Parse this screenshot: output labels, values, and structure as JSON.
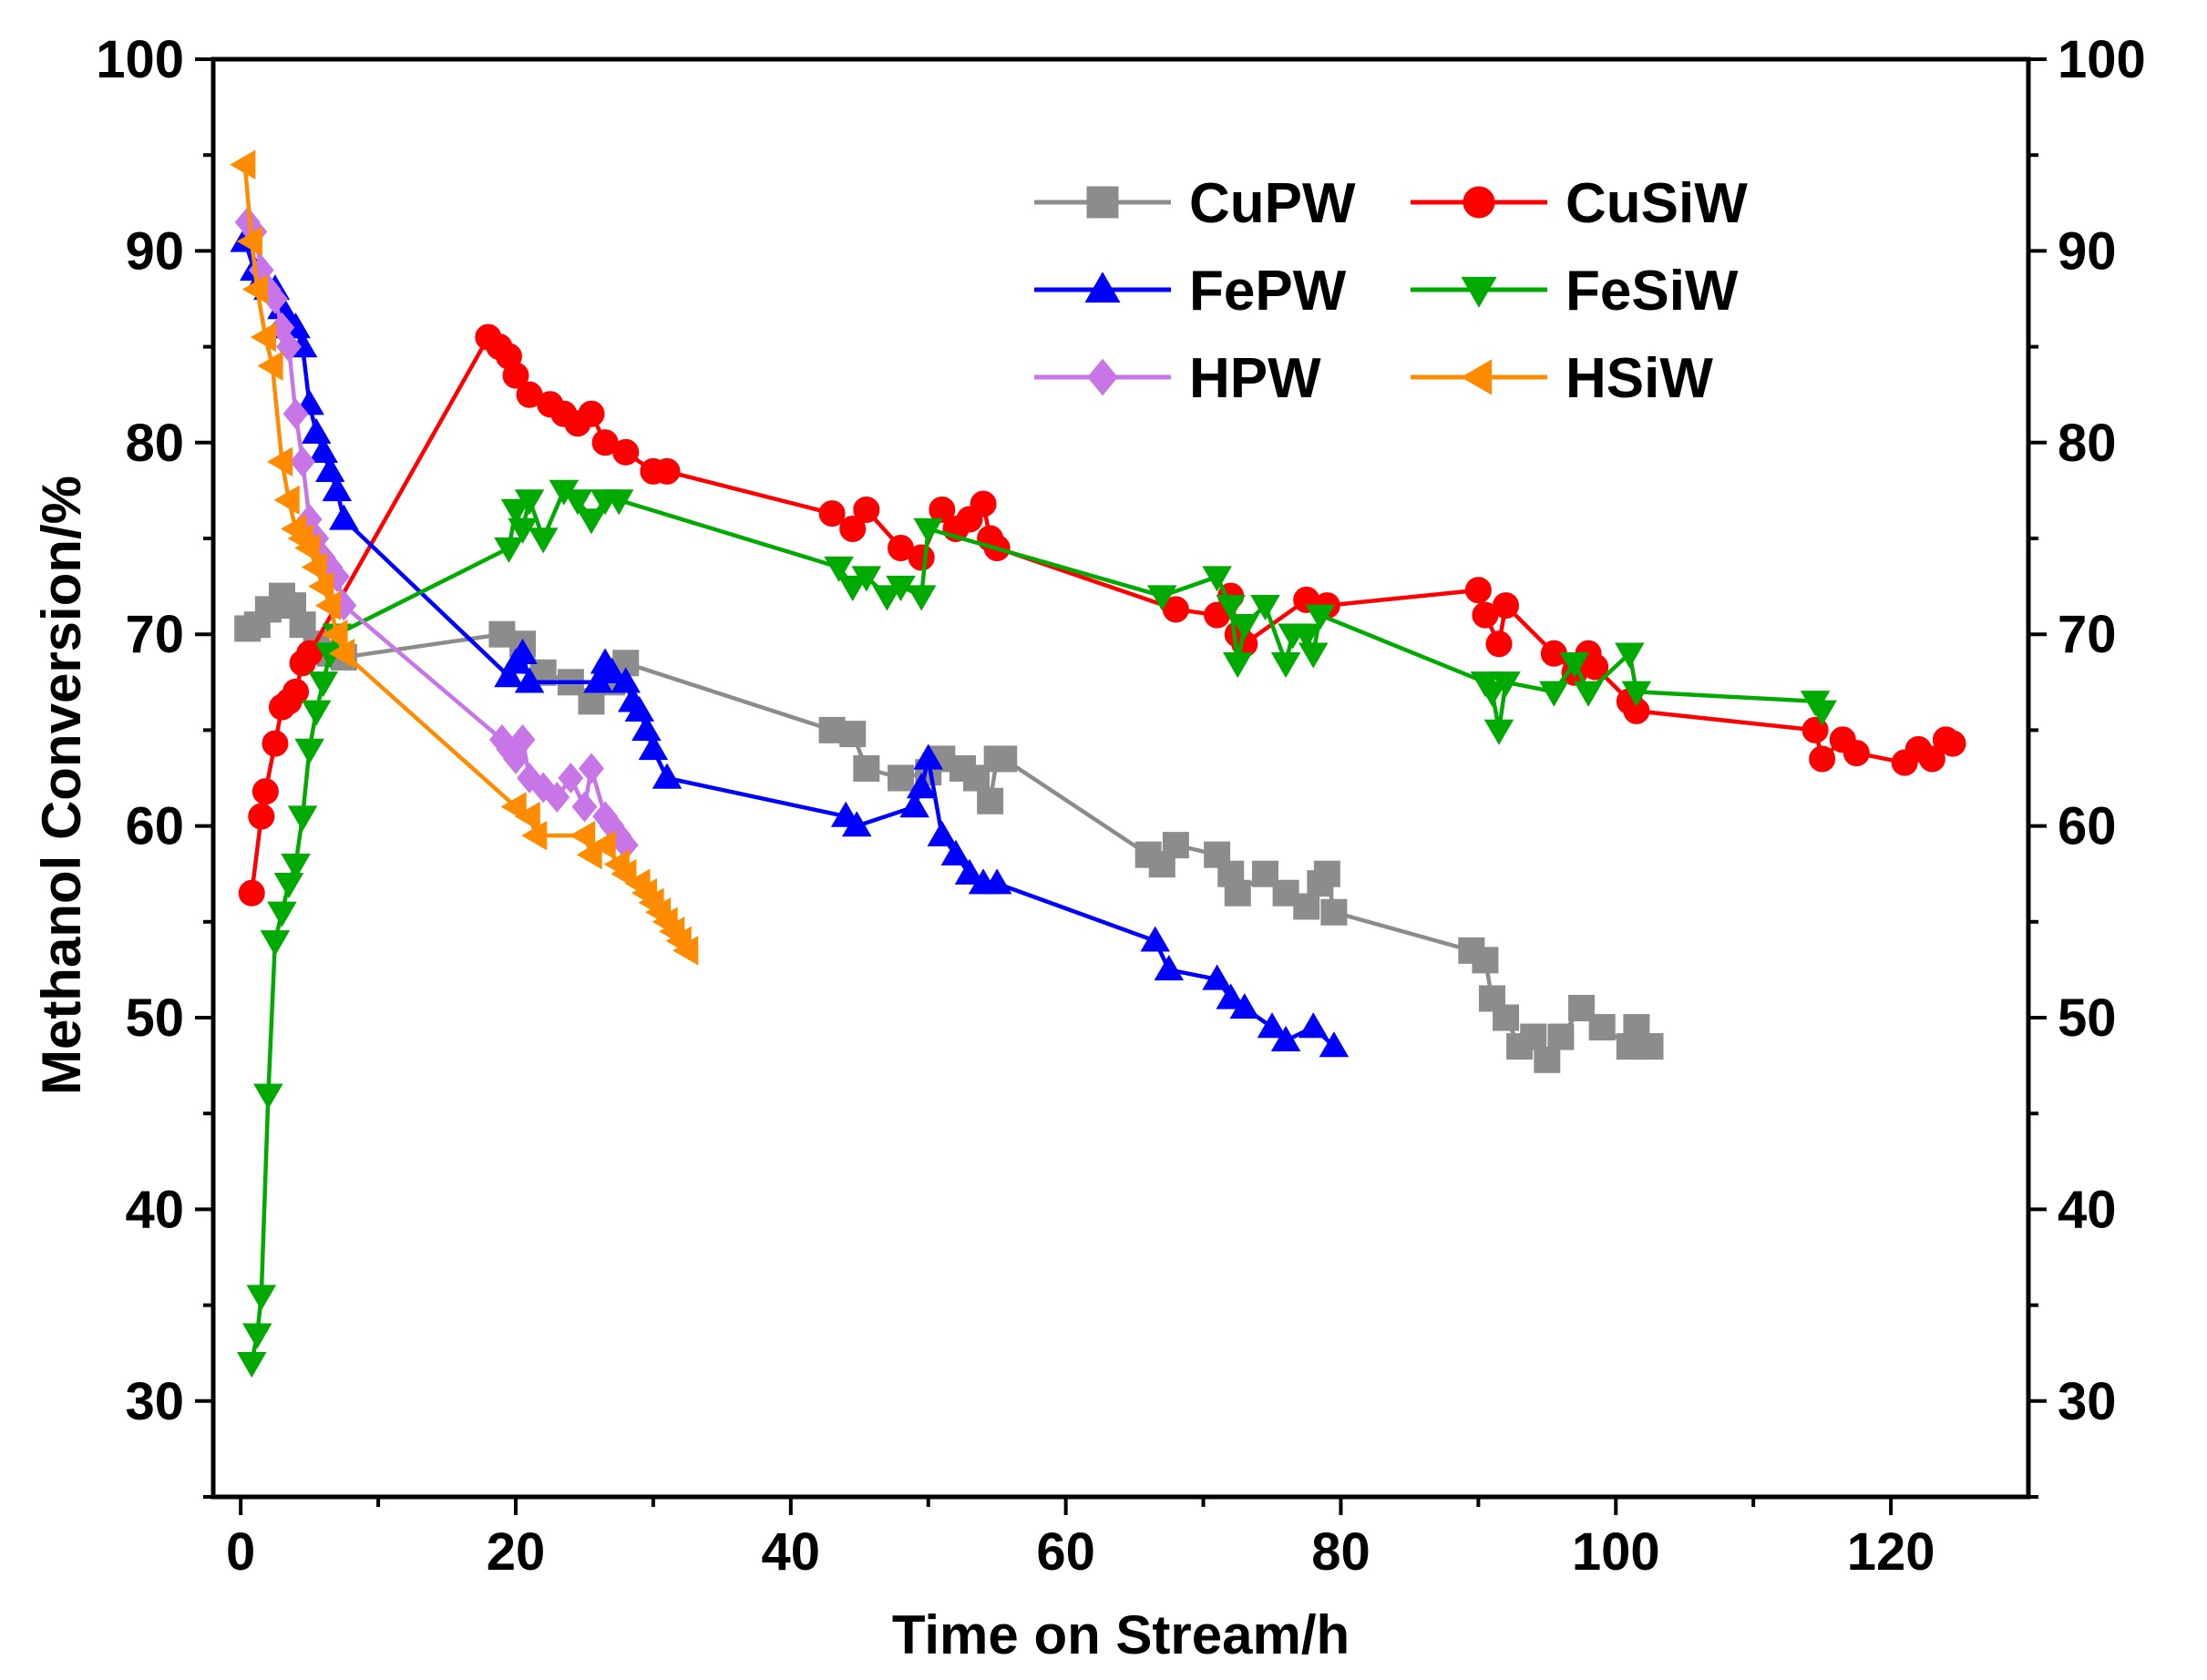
{
  "chart_data": {
    "type": "line",
    "title": "",
    "xlabel": "Time on Stream/h",
    "ylabel": "Methanol Conversion/%",
    "xlim": [
      -2,
      130
    ],
    "ylim": [
      25,
      100
    ],
    "xticks": [
      0,
      20,
      40,
      60,
      80,
      100,
      120
    ],
    "yticks": [
      30,
      40,
      50,
      60,
      70,
      80,
      90,
      100
    ],
    "xtick_labels": [
      "0",
      "20",
      "40",
      "60",
      "80",
      "100",
      "120"
    ],
    "ytick_labels": [
      "30",
      "40",
      "50",
      "60",
      "70",
      "80",
      "90",
      "100"
    ],
    "right_ytick_labels": [
      "30",
      "40",
      "50",
      "60",
      "70",
      "80",
      "90",
      "100"
    ],
    "legend_position": "top-right",
    "series": [
      {
        "name": "CuPW",
        "color": "#8c8c8c",
        "marker": "square",
        "x": [
          0.5,
          1.2,
          2.0,
          3.0,
          3.8,
          4.5,
          5.5,
          6.5,
          7.5,
          19.0,
          20.5,
          22.0,
          24.0,
          25.5,
          27.0,
          28.0,
          43.0,
          44.5,
          45.5,
          48.0,
          50.0,
          51.0,
          52.5,
          53.5,
          54.5,
          55.0,
          55.5,
          66.0,
          67.0,
          68.0,
          71.0,
          72.0,
          72.5,
          74.5,
          76.0,
          77.5,
          78.5,
          79.0,
          79.5,
          89.5,
          90.5,
          91.0,
          92.0,
          93.0,
          94.0,
          95.0,
          96.0,
          97.5,
          99.0,
          101.0,
          101.5,
          102.5
        ],
        "y": [
          70.3,
          70.5,
          71.3,
          72.0,
          71.5,
          70.5,
          69.5,
          69.0,
          68.8,
          70.0,
          69.5,
          68.0,
          67.5,
          66.5,
          67.5,
          68.5,
          65.0,
          64.8,
          63.0,
          62.5,
          62.8,
          63.5,
          63.0,
          62.5,
          61.3,
          63.5,
          63.5,
          58.5,
          58.0,
          59.0,
          58.5,
          57.5,
          56.5,
          57.5,
          56.5,
          55.8,
          57.0,
          57.5,
          55.5,
          53.5,
          53.0,
          51.0,
          50.0,
          48.5,
          49.0,
          47.8,
          49.0,
          50.5,
          49.5,
          48.5,
          49.5,
          48.5
        ]
      },
      {
        "name": "CuSiW",
        "color": "#ff0000",
        "marker": "circle",
        "x": [
          0.8,
          1.5,
          1.8,
          2.5,
          3.0,
          3.5,
          4.0,
          4.5,
          5.0,
          18.0,
          18.8,
          19.5,
          20.0,
          21.0,
          22.5,
          23.5,
          24.5,
          25.5,
          26.5,
          28.0,
          30.0,
          31.0,
          43.0,
          44.5,
          45.5,
          48.0,
          49.5,
          51.0,
          52.0,
          53.0,
          54.0,
          54.5,
          55.0,
          68.0,
          71.0,
          72.0,
          72.5,
          73.0,
          77.5,
          79.0,
          90.0,
          90.5,
          91.5,
          92.0,
          95.5,
          97.0,
          98.0,
          98.5,
          101.0,
          101.5,
          114.5,
          115.0,
          116.5,
          117.5,
          121.0,
          122.0,
          123.0,
          124.0,
          124.5
        ],
        "y": [
          56.5,
          60.5,
          61.8,
          64.3,
          66.2,
          66.5,
          67.0,
          68.5,
          69.0,
          85.5,
          85.0,
          84.5,
          83.5,
          82.5,
          82.0,
          81.5,
          81.0,
          81.5,
          80.0,
          79.5,
          78.5,
          78.5,
          76.3,
          75.5,
          76.5,
          74.5,
          74.0,
          76.5,
          75.5,
          76.0,
          76.8,
          75.0,
          74.5,
          71.3,
          71.0,
          72.0,
          70.0,
          69.5,
          71.8,
          71.5,
          72.3,
          71.0,
          69.5,
          71.5,
          69.0,
          68.0,
          69.0,
          68.3,
          66.5,
          66.0,
          65.0,
          63.5,
          64.5,
          63.8,
          63.3,
          64.0,
          63.5,
          64.5,
          64.3
        ]
      },
      {
        "name": "FePW",
        "color": "#0000ff",
        "marker": "triangle-up",
        "x": [
          0.3,
          1.0,
          1.5,
          2.0,
          2.5,
          3.0,
          3.5,
          4.0,
          4.5,
          5.0,
          5.5,
          6.0,
          6.5,
          7.0,
          7.5,
          19.5,
          20.0,
          20.5,
          21.0,
          26.0,
          26.5,
          27.0,
          28.0,
          28.5,
          29.0,
          29.5,
          30.0,
          31.0,
          44.0,
          44.8,
          49.0,
          49.5,
          50.0,
          51.0,
          52.0,
          53.0,
          54.0,
          55.0,
          66.5,
          67.5,
          71.0,
          72.0,
          73.0,
          75.0,
          76.0,
          78.0,
          79.5
        ],
        "y": [
          90.5,
          89.0,
          88.5,
          88.0,
          88.0,
          87.0,
          86.0,
          86.0,
          85.0,
          82.0,
          80.5,
          79.5,
          78.5,
          77.5,
          76.0,
          67.8,
          68.5,
          69.0,
          67.5,
          67.5,
          68.5,
          68.0,
          67.5,
          66.5,
          66.0,
          65.0,
          64.0,
          62.5,
          60.5,
          60.0,
          61.0,
          62.0,
          63.5,
          59.5,
          58.5,
          57.5,
          57.0,
          57.0,
          54.0,
          52.5,
          52.0,
          51.0,
          50.5,
          49.5,
          48.8,
          49.5,
          48.5
        ]
      },
      {
        "name": "FeSiW",
        "color": "#00aa00",
        "marker": "triangle-down",
        "x": [
          0.8,
          1.2,
          1.5,
          2.0,
          2.5,
          3.0,
          3.5,
          4.0,
          4.5,
          5.0,
          5.5,
          6.0,
          6.5,
          7.0,
          19.5,
          20.0,
          20.5,
          21.0,
          22.0,
          23.5,
          24.5,
          25.5,
          26.5,
          27.5,
          43.5,
          44.5,
          45.5,
          47.0,
          48.0,
          49.5,
          50.0,
          67.0,
          71.0,
          72.0,
          72.5,
          73.0,
          74.5,
          76.0,
          76.5,
          77.5,
          78.0,
          78.5,
          90.5,
          91.0,
          91.5,
          92.0,
          95.5,
          97.0,
          98.0,
          101.0,
          101.5,
          114.5,
          115.0
        ],
        "y": [
          32.0,
          33.5,
          35.5,
          46.0,
          54.0,
          55.5,
          57.0,
          58.0,
          60.5,
          64.0,
          66.0,
          67.5,
          69.0,
          70.0,
          74.5,
          76.5,
          75.5,
          77.0,
          75.0,
          77.5,
          77.0,
          76.0,
          77.0,
          77.0,
          73.5,
          72.5,
          73.0,
          72.0,
          72.5,
          72.0,
          75.5,
          72.0,
          73.0,
          71.5,
          68.5,
          70.5,
          71.5,
          68.5,
          70.0,
          70.0,
          69.0,
          71.0,
          67.5,
          67.0,
          65.0,
          67.5,
          67.0,
          68.5,
          67.0,
          69.0,
          67.0,
          66.5,
          66.0
        ]
      },
      {
        "name": "HPW",
        "color": "#c875e8",
        "marker": "diamond",
        "x": [
          0.5,
          1.0,
          1.5,
          2.0,
          2.5,
          3.0,
          3.5,
          4.0,
          4.5,
          5.0,
          5.5,
          6.0,
          6.5,
          7.0,
          7.5,
          19.0,
          19.5,
          20.0,
          20.5,
          21.0,
          22.0,
          23.0,
          24.0,
          25.0,
          25.5,
          26.5,
          27.0,
          27.5,
          28.0
        ],
        "y": [
          91.5,
          91.0,
          89.0,
          88.0,
          87.5,
          86.0,
          85.0,
          81.5,
          79.0,
          76.0,
          75.0,
          74.0,
          73.5,
          73.0,
          71.5,
          64.5,
          64.0,
          63.5,
          64.5,
          62.5,
          62.0,
          61.5,
          62.5,
          61.0,
          63.0,
          60.5,
          60.0,
          59.5,
          59.0
        ]
      },
      {
        "name": "HSiW",
        "color": "#ff8c00",
        "marker": "triangle-left",
        "x": [
          0.3,
          0.8,
          1.2,
          1.8,
          2.3,
          3.0,
          3.5,
          4.0,
          4.5,
          5.0,
          5.5,
          6.0,
          6.5,
          7.0,
          7.5,
          20.0,
          21.0,
          21.5,
          25.0,
          25.5,
          26.5,
          27.5,
          28.0,
          29.0,
          29.5,
          30.0,
          30.5,
          31.0,
          31.5,
          32.0,
          32.5
        ],
        "y": [
          94.5,
          90.5,
          88.0,
          85.5,
          84.0,
          79.0,
          77.0,
          75.5,
          75.0,
          74.5,
          73.5,
          72.5,
          71.5,
          70.0,
          69.0,
          61.0,
          60.5,
          59.5,
          59.5,
          58.5,
          59.0,
          58.0,
          57.5,
          57.0,
          56.5,
          56.0,
          55.5,
          55.0,
          54.5,
          54.0,
          53.5
        ]
      }
    ]
  }
}
